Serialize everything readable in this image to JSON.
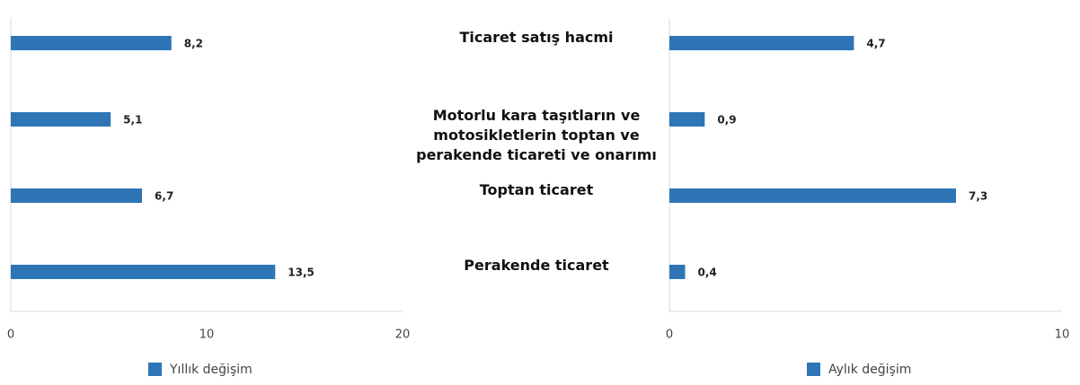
{
  "chart_data": [
    {
      "type": "barh",
      "categories": [
        "Ticaret satış hacmi",
        "Motorlu kara taşıtların ve motosikletlerin toptan ve perakende ticareti ve onarımı",
        "Toptan ticaret",
        "Perakende ticaret"
      ],
      "series": [
        {
          "name": "Yıllık değişim",
          "color": "#2e75b6",
          "values": [
            8.2,
            5.1,
            6.7,
            13.5
          ],
          "value_labels": [
            "8,2",
            "5,1",
            "6,7",
            "13,5"
          ]
        }
      ],
      "xlim": [
        0,
        20
      ],
      "xticks": [
        0,
        10,
        20
      ]
    },
    {
      "type": "barh",
      "series": [
        {
          "name": "Aylık değişim",
          "color": "#2e75b6",
          "values": [
            4.7,
            0.9,
            7.3,
            0.4
          ],
          "value_labels": [
            "4,7",
            "0,9",
            "7,3",
            "0,4"
          ]
        }
      ],
      "xlim": [
        0,
        10
      ],
      "xticks": [
        0,
        10
      ]
    }
  ]
}
